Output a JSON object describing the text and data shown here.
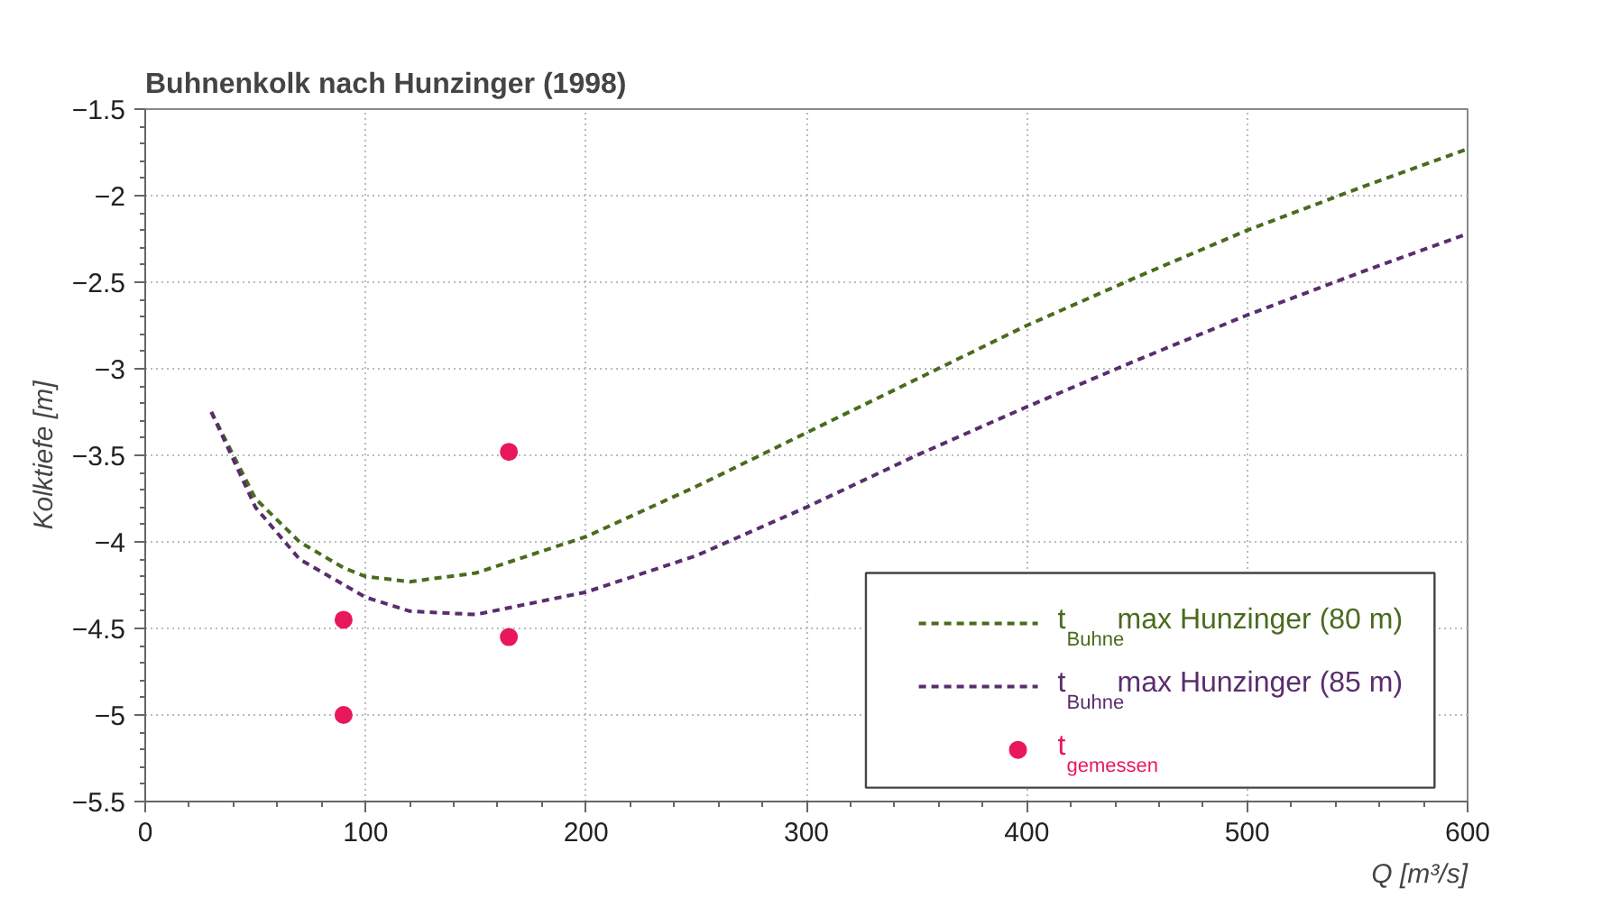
{
  "chart_data": {
    "type": "line",
    "title": "Buhnenkolk nach Hunzinger (1998)",
    "xlabel": "Q [m³/s]",
    "ylabel": "Kolktiefe [m]",
    "xlim": [
      0,
      600
    ],
    "xticks": [
      0,
      100,
      200,
      300,
      400,
      500,
      600
    ],
    "ylim": [
      -5.5,
      -1.5
    ],
    "yticks": [
      -5.5,
      -5,
      -4.5,
      -4,
      -3.5,
      -3,
      -2.5,
      -2,
      -1.5
    ],
    "grid": true,
    "legend": "bottom right",
    "series": [
      {
        "name": "t$_{Buhne}$max Hunzinger (80 m)",
        "line_style": "dashed",
        "marker": "none",
        "color": "#4a6b1e",
        "x": [
          30,
          50,
          70,
          90,
          100,
          120,
          150,
          200,
          250,
          300,
          350,
          400,
          450,
          500,
          550,
          600
        ],
        "values": [
          -3.25,
          -3.75,
          -4.0,
          -4.15,
          -4.2,
          -4.23,
          -4.18,
          -3.97,
          -3.68,
          -3.37,
          -3.06,
          -2.75,
          -2.47,
          -2.2,
          -1.96,
          -1.73
        ]
      },
      {
        "name": "t$_{Buhne}$max Hunzinger (85 m)",
        "line_style": "dashed",
        "marker": "none",
        "color": "#5a2d6e",
        "x": [
          30,
          50,
          70,
          100,
          120,
          150,
          200,
          250,
          300,
          350,
          400,
          450,
          500,
          550,
          600
        ],
        "values": [
          -3.25,
          -3.8,
          -4.1,
          -4.32,
          -4.4,
          -4.42,
          -4.29,
          -4.08,
          -3.8,
          -3.5,
          -3.22,
          -2.95,
          -2.69,
          -2.45,
          -2.22
        ]
      },
      {
        "name": "t$_{gemessen}$",
        "type": "scatter",
        "marker": "circle",
        "color": "#e8185a",
        "x": [
          90,
          90,
          165,
          165
        ],
        "values": [
          -4.45,
          -5.0,
          -3.48,
          -4.55
        ]
      }
    ]
  }
}
